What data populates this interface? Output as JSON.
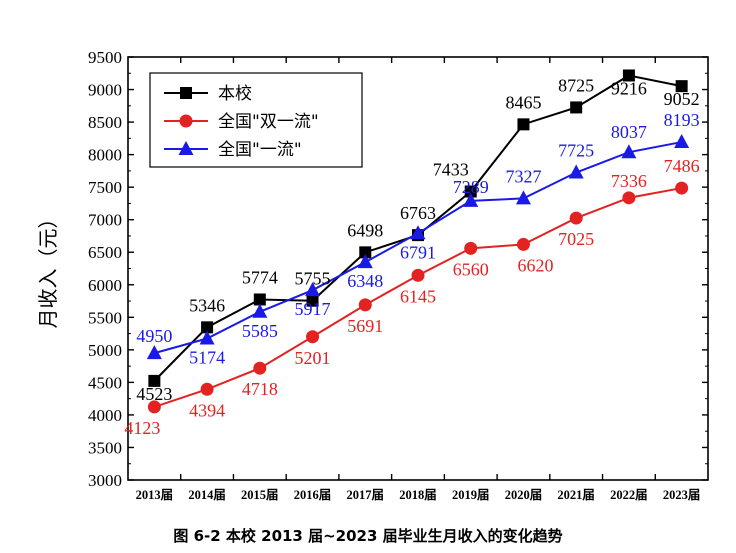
{
  "chart_data": {
    "type": "line",
    "title": "图 6-2 本校 2013 届~2023 届毕业生月收入的变化趋势",
    "ylabel": "月收入（元）",
    "xlabel": "",
    "ylim": [
      3000,
      9500
    ],
    "yticks": [
      "3000",
      "3500",
      "4000",
      "4500",
      "5000",
      "5500",
      "6000",
      "6500",
      "7000",
      "7500",
      "8000",
      "8500",
      "9000",
      "9500"
    ],
    "categories": [
      "2013届",
      "2014届",
      "2015届",
      "2016届",
      "2017届",
      "2018届",
      "2019届",
      "2020届",
      "2021届",
      "2022届",
      "2023届"
    ],
    "legend_position": "top-left",
    "series": [
      {
        "name": "本校",
        "color": "#000000",
        "marker": "square",
        "values": [
          4523,
          5346,
          5774,
          5755,
          6498,
          6763,
          7433,
          8465,
          8725,
          9216,
          9052
        ],
        "labels": [
          "4523",
          "5346",
          "5774",
          "5755",
          "6498",
          "6763",
          "7433",
          "8465",
          "8725",
          "9216",
          "9052"
        ]
      },
      {
        "name": "全国\"双一流\"",
        "color": "#e32222",
        "marker": "circle",
        "values": [
          4123,
          4394,
          4718,
          5201,
          5691,
          6145,
          6560,
          6620,
          7025,
          7336,
          7486
        ],
        "labels": [
          "4123",
          "4394",
          "4718",
          "5201",
          "5691",
          "6145",
          "6560",
          "6620",
          "7025",
          "7336",
          "7486"
        ]
      },
      {
        "name": "全国\"一流\"",
        "color": "#1a1ae6",
        "marker": "triangle",
        "values": [
          4950,
          5174,
          5585,
          5917,
          6348,
          6791,
          7289,
          7327,
          7725,
          8037,
          8193
        ],
        "labels": [
          "4950",
          "5174",
          "5585",
          "5917",
          "6348",
          "6791",
          "7289",
          "7327",
          "7725",
          "8037",
          "8193"
        ]
      }
    ]
  }
}
